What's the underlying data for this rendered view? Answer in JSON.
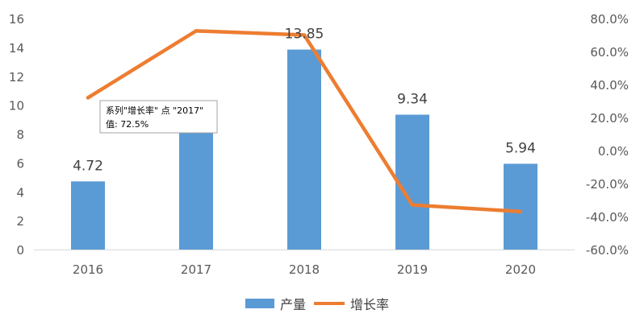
{
  "chart_data": {
    "type": "bar",
    "categories": [
      "2016",
      "2017",
      "2018",
      "2019",
      "2020"
    ],
    "series": [
      {
        "name": "产量",
        "type": "bar",
        "axis": "left",
        "color": "#5B9BD5",
        "values": [
          4.72,
          8.15,
          13.85,
          9.34,
          5.94
        ],
        "labels": [
          "4.72",
          "",
          "13.85",
          "9.34",
          "5.94"
        ]
      },
      {
        "name": "增长率",
        "type": "line",
        "axis": "right",
        "color": "#ED7D31",
        "values": [
          0.32,
          0.725,
          0.7,
          -0.33,
          -0.37
        ]
      }
    ],
    "y_left": {
      "ylim": [
        0,
        16
      ],
      "ticks": [
        "0",
        "2",
        "4",
        "6",
        "8",
        "10",
        "12",
        "14",
        "16"
      ]
    },
    "y_right": {
      "ylim": [
        -0.6,
        0.8
      ],
      "ticks": [
        "-60.0%",
        "-40.0%",
        "-20.0%",
        "0.0%",
        "20.0%",
        "40.0%",
        "60.0%",
        "80.0%"
      ]
    },
    "legend": {
      "position": "bottom",
      "items": [
        "产量",
        "增长率"
      ]
    },
    "grid": false,
    "tooltip": {
      "line1": "系列\"增长率\" 点 \"2017\"",
      "line2": "值: 72.5%"
    }
  }
}
